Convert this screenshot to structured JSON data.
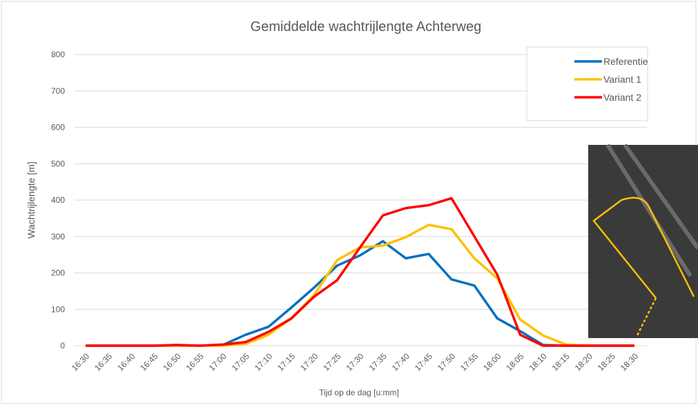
{
  "chart_data": {
    "type": "line",
    "title": "Gemiddelde wachtrijlengte Achterweg",
    "x_label": "Tijd op de dag [u:mm]",
    "y_label": "Wachtrijlengte [m]",
    "categories": [
      "16:30",
      "16:35",
      "16:40",
      "16:45",
      "16:50",
      "16:55",
      "17:00",
      "17:05",
      "17:10",
      "17:15",
      "17:20",
      "17:25",
      "17:30",
      "17:35",
      "17:40",
      "17:45",
      "17:50",
      "17:55",
      "18:00",
      "18:05",
      "18:10",
      "18:15",
      "18:20",
      "18:25",
      "18:30"
    ],
    "series": [
      {
        "name": "Referentie",
        "color": "#0070c0",
        "values": [
          0,
          0,
          0,
          0,
          0,
          0,
          2,
          30,
          52,
          105,
          160,
          220,
          248,
          287,
          240,
          252,
          182,
          165,
          75,
          40,
          2,
          0,
          0,
          0,
          0
        ]
      },
      {
        "name": "Variant 1",
        "color": "#ffc000",
        "values": [
          0,
          0,
          0,
          0,
          0,
          0,
          0,
          5,
          30,
          75,
          140,
          235,
          270,
          275,
          298,
          332,
          320,
          240,
          185,
          72,
          28,
          3,
          0,
          0,
          0
        ]
      },
      {
        "name": "Variant 2",
        "color": "#ff0000",
        "values": [
          0,
          0,
          0,
          0,
          2,
          0,
          3,
          10,
          38,
          75,
          135,
          180,
          270,
          358,
          378,
          386,
          405,
          300,
          195,
          30,
          0,
          0,
          0,
          0,
          0
        ]
      }
    ],
    "ylim": [
      0,
      800
    ],
    "yticks": [
      0,
      100,
      200,
      300,
      400,
      500,
      600,
      700,
      800
    ],
    "grid": true,
    "legend": "upper right"
  }
}
